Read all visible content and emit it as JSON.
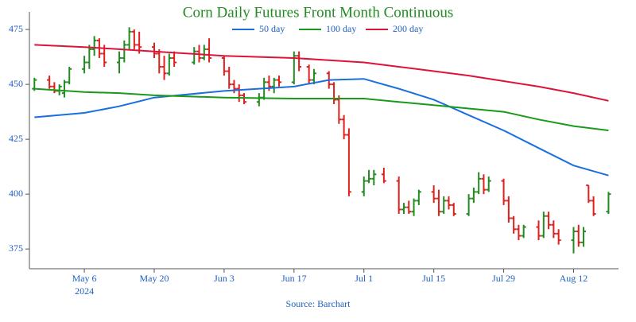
{
  "chart_data": {
    "type": "ohlc",
    "title": "Corn Daily Futures Front Month Continuous",
    "source": "Source: Barchart",
    "up_color": "#228b22",
    "down_color": "#e0201c",
    "x": [
      "2024-04-26",
      "2024-04-29",
      "2024-04-30",
      "2024-05-01",
      "2024-05-02",
      "2024-05-03",
      "2024-05-06",
      "2024-05-07",
      "2024-05-08",
      "2024-05-09",
      "2024-05-10",
      "2024-05-13",
      "2024-05-14",
      "2024-05-15",
      "2024-05-16",
      "2024-05-17",
      "2024-05-20",
      "2024-05-21",
      "2024-05-22",
      "2024-05-23",
      "2024-05-24",
      "2024-05-28",
      "2024-05-29",
      "2024-05-30",
      "2024-05-31",
      "2024-06-03",
      "2024-06-04",
      "2024-06-05",
      "2024-06-06",
      "2024-06-07",
      "2024-06-10",
      "2024-06-11",
      "2024-06-12",
      "2024-06-13",
      "2024-06-14",
      "2024-06-17",
      "2024-06-18",
      "2024-06-20",
      "2024-06-21",
      "2024-06-24",
      "2024-06-25",
      "2024-06-26",
      "2024-06-27",
      "2024-06-28",
      "2024-07-01",
      "2024-07-02",
      "2024-07-03",
      "2024-07-05",
      "2024-07-08",
      "2024-07-09",
      "2024-07-10",
      "2024-07-11",
      "2024-07-12",
      "2024-07-15",
      "2024-07-16",
      "2024-07-17",
      "2024-07-18",
      "2024-07-19",
      "2024-07-22",
      "2024-07-23",
      "2024-07-24",
      "2024-07-25",
      "2024-07-26",
      "2024-07-29",
      "2024-07-30",
      "2024-07-31",
      "2024-08-01",
      "2024-08-02",
      "2024-08-05",
      "2024-08-06",
      "2024-08-07",
      "2024-08-08",
      "2024-08-09",
      "2024-08-12",
      "2024-08-13",
      "2024-08-14",
      "2024-08-15",
      "2024-08-16",
      "2024-08-19"
    ],
    "open": [
      448,
      452,
      449,
      447,
      446,
      451,
      457,
      460,
      466,
      470,
      464,
      460,
      462,
      468,
      474,
      468,
      467,
      464,
      458,
      455,
      462,
      460,
      465,
      462,
      466,
      462,
      456,
      450,
      448,
      445,
      442,
      444,
      451,
      449,
      452,
      451,
      463,
      458,
      452,
      455,
      450,
      443,
      434,
      427,
      401,
      406,
      407,
      409,
      406,
      393,
      394,
      392,
      397,
      401,
      398,
      392,
      397,
      395,
      391,
      398,
      401,
      407,
      402,
      406,
      397,
      389,
      384,
      381,
      385,
      381,
      390,
      386,
      382,
      379,
      383,
      378,
      404,
      397,
      392
    ],
    "high": [
      453,
      454,
      451,
      450,
      452,
      458,
      463,
      468,
      472,
      471,
      468,
      465,
      470,
      476,
      475,
      474,
      469,
      466,
      463,
      464,
      465,
      467,
      468,
      468,
      471,
      463,
      458,
      452,
      450,
      446,
      446,
      453,
      454,
      453,
      454,
      465,
      465,
      459,
      457,
      456,
      451,
      445,
      436,
      430,
      408,
      411,
      411,
      412,
      408,
      396,
      397,
      398,
      402,
      404,
      402,
      399,
      399,
      396,
      400,
      403,
      410,
      409,
      408,
      407,
      399,
      390,
      386,
      386,
      388,
      392,
      392,
      388,
      384,
      385,
      386,
      385,
      404,
      399,
      401
    ],
    "low": [
      447,
      448,
      446,
      445,
      444,
      450,
      455,
      457,
      463,
      462,
      458,
      455,
      460,
      466,
      466,
      464,
      462,
      455,
      452,
      454,
      458,
      459,
      460,
      461,
      460,
      454,
      448,
      446,
      442,
      441,
      440,
      443,
      447,
      446,
      449,
      450,
      456,
      450,
      450,
      448,
      441,
      432,
      425,
      399,
      399,
      405,
      404,
      405,
      391,
      391,
      391,
      390,
      395,
      396,
      390,
      391,
      393,
      390,
      390,
      396,
      400,
      400,
      401,
      395,
      387,
      382,
      379,
      380,
      379,
      380,
      384,
      380,
      377,
      373,
      376,
      376,
      396,
      390,
      391
    ],
    "close": [
      452,
      449,
      447,
      449,
      451,
      457,
      460,
      466,
      470,
      464,
      460,
      462,
      468,
      474,
      468,
      467,
      464,
      458,
      455,
      462,
      460,
      465,
      462,
      466,
      462,
      456,
      450,
      448,
      445,
      442,
      444,
      451,
      449,
      452,
      451,
      463,
      458,
      452,
      455,
      450,
      443,
      434,
      427,
      401,
      406,
      407,
      409,
      406,
      393,
      394,
      392,
      397,
      401,
      398,
      392,
      397,
      395,
      391,
      398,
      401,
      407,
      402,
      406,
      397,
      389,
      384,
      381,
      385,
      381,
      390,
      386,
      382,
      379,
      383,
      378,
      383,
      397,
      391,
      400
    ],
    "series": [
      {
        "name": "50 day",
        "color": "#1a6fdf",
        "x": [
          "2024-04-26",
          "2024-05-06",
          "2024-05-13",
          "2024-05-20",
          "2024-06-03",
          "2024-06-17",
          "2024-06-24",
          "2024-07-01",
          "2024-07-08",
          "2024-07-15",
          "2024-07-22",
          "2024-07-29",
          "2024-08-05",
          "2024-08-12",
          "2024-08-19"
        ],
        "values": [
          435,
          437,
          440,
          444,
          447,
          449,
          452,
          452.5,
          448,
          443,
          436,
          429,
          421,
          413,
          408.5
        ]
      },
      {
        "name": "100 day",
        "color": "#1a9a1a",
        "x": [
          "2024-04-26",
          "2024-05-06",
          "2024-05-13",
          "2024-05-20",
          "2024-06-03",
          "2024-06-17",
          "2024-06-24",
          "2024-07-01",
          "2024-07-08",
          "2024-07-15",
          "2024-07-22",
          "2024-07-29",
          "2024-08-05",
          "2024-08-12",
          "2024-08-19"
        ],
        "values": [
          448,
          446.5,
          446,
          445,
          444,
          443.5,
          443.5,
          443.5,
          442,
          440.5,
          439,
          437.5,
          434,
          431,
          429
        ]
      },
      {
        "name": "200 day",
        "color": "#dc143c",
        "x": [
          "2024-04-26",
          "2024-05-06",
          "2024-05-13",
          "2024-05-20",
          "2024-06-03",
          "2024-06-17",
          "2024-06-24",
          "2024-07-01",
          "2024-07-08",
          "2024-07-15",
          "2024-07-22",
          "2024-07-29",
          "2024-08-05",
          "2024-08-12",
          "2024-08-19"
        ],
        "values": [
          468,
          467,
          466,
          465,
          463,
          462,
          461,
          460,
          458,
          456,
          454,
          451.5,
          449,
          446,
          442.5
        ]
      }
    ],
    "xlim": [
      "2024-04-25",
      "2024-08-21"
    ],
    "xticks": [
      {
        "value": "2024-05-06",
        "label": "May 6",
        "sublabel": "2024"
      },
      {
        "value": "2024-05-20",
        "label": "May 20"
      },
      {
        "value": "2024-06-03",
        "label": "Jun 3"
      },
      {
        "value": "2024-06-17",
        "label": "Jun 17"
      },
      {
        "value": "2024-07-01",
        "label": "Jul 1"
      },
      {
        "value": "2024-07-15",
        "label": "Jul 15"
      },
      {
        "value": "2024-07-29",
        "label": "Jul 29"
      },
      {
        "value": "2024-08-12",
        "label": "Aug 12"
      }
    ],
    "ylim": [
      366,
      483
    ],
    "yticks": [
      375,
      400,
      425,
      450,
      475
    ]
  }
}
